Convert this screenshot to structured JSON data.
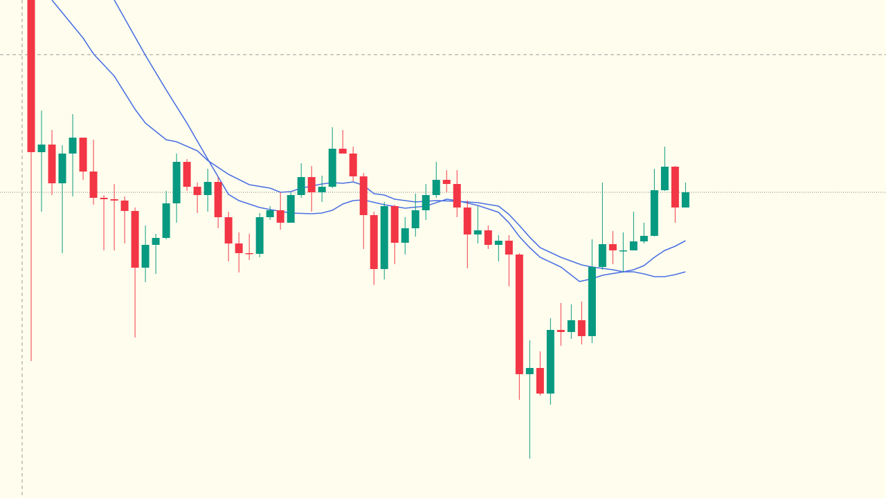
{
  "chart_data": {
    "type": "candlestick",
    "xlim": [
      -3,
      82.3
    ],
    "ylim": [
      0,
      720
    ],
    "up_color": "#089981",
    "down_color": "#f23645",
    "open": [
      720,
      500,
      511,
      455,
      498,
      521,
      472,
      434,
      432,
      430,
      415,
      333,
      366,
      376,
      426,
      486,
      450,
      438,
      457,
      406,
      368,
      354,
      353,
      406,
      416,
      398,
      438,
      464,
      442,
      450,
      505,
      498,
      465,
      409,
      331,
      422,
      369,
      390,
      416,
      438,
      460,
      454,
      420,
      381,
      387,
      366,
      372,
      352,
      179,
      188,
      151,
      243,
      240,
      257,
      234,
      334,
      367,
      357,
      358,
      371,
      379,
      445,
      479,
      420
    ],
    "high": [
      720,
      560,
      532,
      510,
      555,
      521,
      518,
      438,
      454,
      436,
      420,
      394,
      382,
      444,
      498,
      490,
      456,
      476,
      464,
      414,
      384,
      382,
      412,
      422,
      442,
      442,
      484,
      480,
      466,
      536,
      532,
      508,
      470,
      414,
      428,
      424,
      406,
      440,
      454,
      486,
      474,
      474,
      430,
      422,
      394,
      380,
      380,
      354,
      228,
      212,
      260,
      282,
      280,
      284,
      374,
      456,
      386,
      384,
      414,
      398,
      476,
      508,
      480,
      456
    ],
    "low": [
      198,
      414,
      438,
      354,
      436,
      460,
      424,
      358,
      358,
      368,
      232,
      312,
      324,
      374,
      398,
      444,
      412,
      414,
      390,
      342,
      326,
      344,
      348,
      402,
      388,
      398,
      434,
      414,
      428,
      448,
      498,
      458,
      360,
      308,
      316,
      338,
      352,
      378,
      402,
      434,
      442,
      406,
      332,
      368,
      360,
      342,
      306,
      142,
      57,
      148,
      135,
      220,
      230,
      222,
      224,
      330,
      338,
      326,
      358,
      368,
      378,
      444,
      398,
      420
    ],
    "close": [
      500,
      511,
      455,
      498,
      521,
      472,
      434,
      432,
      430,
      415,
      333,
      366,
      376,
      426,
      486,
      450,
      438,
      457,
      406,
      368,
      354,
      353,
      406,
      416,
      398,
      438,
      464,
      442,
      450,
      505,
      498,
      465,
      409,
      331,
      422,
      369,
      390,
      416,
      438,
      460,
      454,
      420,
      381,
      387,
      366,
      372,
      352,
      179,
      188,
      151,
      243,
      240,
      257,
      234,
      334,
      367,
      358,
      358,
      371,
      379,
      445,
      479,
      420,
      442
    ],
    "series": [
      {
        "color": "#4a6fe3",
        "x": [
          2,
          5,
          6,
          8,
          10,
          11,
          12,
          13,
          14,
          16,
          17,
          19,
          21,
          23,
          24,
          25,
          26,
          28,
          29,
          30,
          31,
          32,
          33,
          34,
          35,
          37,
          39,
          41,
          43,
          45,
          46,
          47,
          48,
          49,
          51,
          53,
          54,
          56,
          57,
          58,
          59,
          60,
          61,
          62,
          63
        ],
        "values": [
          720,
          665,
          642,
          610,
          562,
          542,
          530,
          518,
          515,
          502,
          488,
          468,
          453,
          448,
          442,
          443,
          448,
          454,
          456,
          455,
          457,
          452,
          440,
          438,
          432,
          428,
          430,
          429,
          427,
          422,
          410,
          394,
          377,
          362,
          348,
          337,
          334,
          330,
          327,
          330,
          336,
          348,
          358,
          364,
          372
        ]
      },
      {
        "color": "#4a6fe3",
        "x": [
          8,
          11,
          13,
          15,
          17,
          19,
          20,
          22,
          23,
          25,
          27,
          28,
          29,
          30,
          31,
          32,
          34,
          36,
          38,
          40,
          41,
          43,
          45,
          46,
          47,
          48,
          49,
          51,
          52.8,
          54,
          55,
          57,
          58,
          59,
          60,
          61,
          62,
          63
        ],
        "values": [
          720,
          640,
          590,
          542,
          490,
          439,
          430,
          420,
          417,
          412,
          411,
          412,
          416,
          425,
          430,
          431,
          424,
          419,
          422,
          432,
          430,
          423,
          413,
          398,
          378,
          362,
          348,
          334,
          313,
          317,
          322,
          327,
          327,
          324,
          320,
          320,
          323,
          327
        ]
      }
    ]
  }
}
